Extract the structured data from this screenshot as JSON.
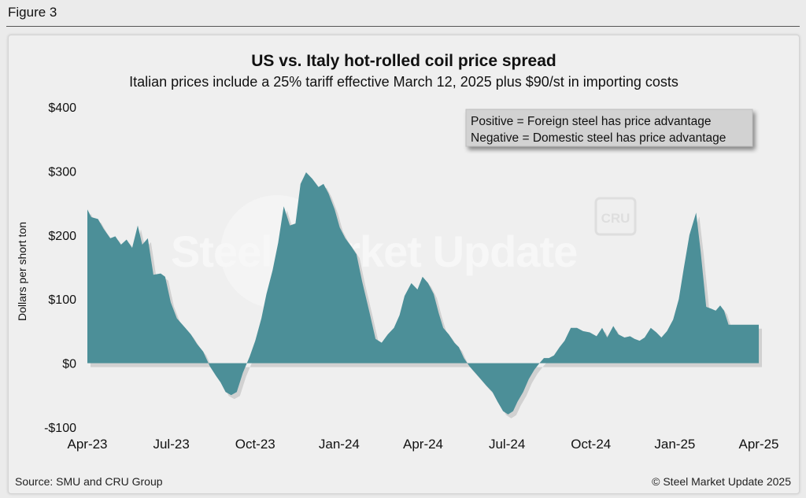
{
  "figure_label": "Figure 3",
  "source": "Source: SMU and CRU Group",
  "copyright": "© Steel Market Update 2025",
  "watermark": {
    "text": "Steel Market Update",
    "badge": "CRU"
  },
  "colors": {
    "fill": "#4c8f98",
    "shadow": "#b8b8b8",
    "text": "#111111",
    "background": "#efefef"
  },
  "chart_data": {
    "type": "area",
    "title": "US vs. Italy hot-rolled coil price spread",
    "subtitle": "Italian prices include a 25% tariff effective March 12, 2025 plus $90/st in importing costs",
    "ylabel": "Dollars per short ton",
    "xlabel": "",
    "ylim": [
      -100,
      400
    ],
    "yticks": [
      -100,
      0,
      100,
      200,
      300,
      400
    ],
    "ytick_labels": [
      "-$100",
      "$0",
      "$100",
      "$200",
      "$300",
      "$400"
    ],
    "xlim": [
      0,
      24
    ],
    "xticks": [
      0,
      3,
      6,
      9,
      12,
      15,
      18,
      21,
      24
    ],
    "xtick_labels": [
      "Apr-23",
      "Jul-23",
      "Oct-23",
      "Jan-24",
      "Apr-24",
      "Jul-24",
      "Oct-24",
      "Jan-25",
      "Apr-25"
    ],
    "annotation": [
      "Positive = Foreign steel has price advantage",
      "Negative = Domestic steel has price advantage"
    ],
    "grid": false,
    "legend": "none",
    "series": [
      {
        "x": [
          0,
          0.14,
          0.38,
          0.58,
          0.82,
          1.0,
          1.2,
          1.4,
          1.6,
          1.8,
          1.96,
          2.16,
          2.36,
          2.62,
          2.78,
          2.98,
          3.2,
          3.5,
          3.7,
          3.92,
          4.14,
          4.38,
          4.6,
          4.76,
          4.94,
          5.14,
          5.34,
          5.56,
          5.8,
          6.0,
          6.22,
          6.4,
          6.62,
          6.82,
          7.02,
          7.24,
          7.44,
          7.62,
          7.82,
          8.04,
          8.26,
          8.44,
          8.62,
          8.84,
          9.02,
          9.22,
          9.44,
          9.62,
          9.82,
          10.08,
          10.3,
          10.52,
          10.74,
          10.96,
          11.16,
          11.34,
          11.58,
          11.8,
          11.98,
          12.18,
          12.38,
          12.56,
          12.72,
          12.92,
          13.12,
          13.28,
          13.46,
          13.66,
          13.86,
          14.06,
          14.26,
          14.48,
          14.66,
          14.86,
          15.04,
          15.22,
          15.38,
          15.58,
          15.78,
          15.98,
          16.16,
          16.32,
          16.5,
          16.68,
          16.88,
          17.06,
          17.28,
          17.5,
          17.72,
          17.96,
          18.2,
          18.4,
          18.58,
          18.8,
          18.98,
          19.2,
          19.4,
          19.56,
          19.74,
          19.92,
          20.14,
          20.34,
          20.52,
          20.72,
          20.94,
          21.14,
          21.32,
          21.52,
          21.76,
          21.92,
          22.12,
          22.3,
          22.46,
          22.62,
          22.76,
          22.92,
          23.1,
          23.32,
          23.52,
          23.68,
          23.86,
          24.0
        ],
        "y": [
          240,
          228,
          225,
          210,
          195,
          198,
          185,
          193,
          180,
          215,
          185,
          195,
          138,
          140,
          135,
          95,
          70,
          55,
          45,
          30,
          18,
          -5,
          -20,
          -30,
          -45,
          -50,
          -45,
          -15,
          10,
          35,
          70,
          108,
          145,
          188,
          245,
          215,
          218,
          280,
          298,
          288,
          275,
          280,
          265,
          240,
          212,
          195,
          182,
          170,
          128,
          80,
          38,
          32,
          45,
          55,
          75,
          105,
          125,
          115,
          135,
          125,
          108,
          78,
          55,
          45,
          32,
          25,
          8,
          -5,
          -15,
          -25,
          -35,
          -45,
          -60,
          -75,
          -80,
          -75,
          -60,
          -45,
          -25,
          -10,
          0,
          8,
          8,
          12,
          25,
          35,
          55,
          55,
          50,
          48,
          42,
          55,
          40,
          58,
          45,
          40,
          42,
          38,
          35,
          40,
          55,
          48,
          40,
          50,
          68,
          100,
          148,
          200,
          235,
          175,
          88,
          85,
          82,
          90,
          82,
          60,
          60,
          60,
          60,
          60,
          60,
          60
        ]
      }
    ]
  }
}
